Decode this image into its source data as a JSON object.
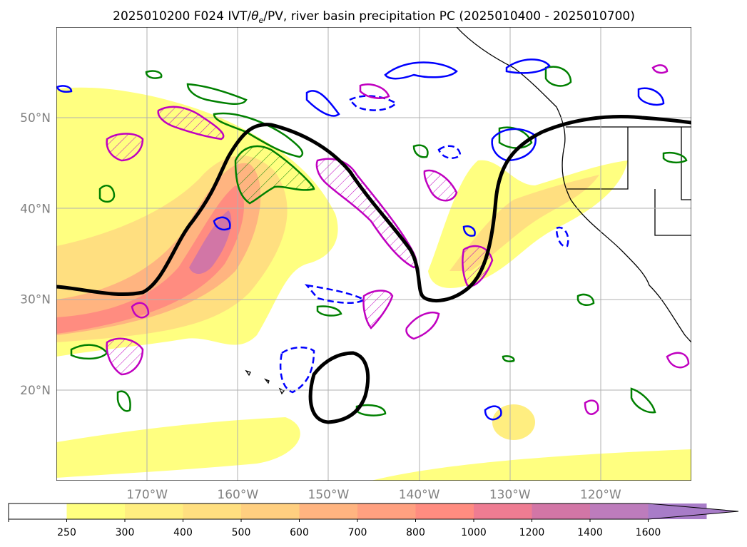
{
  "chart_data": {
    "type": "map",
    "title": "2025010200 F024 IVT/$\\theta_e$/PV, river basin precipitation PC (2025010400 - 2025010700)",
    "title_parts": {
      "prefix": "2025010200 F024 IVT/",
      "theta": "θ",
      "sub": "e",
      "suffix": "/PV, river basin precipitation PC (2025010400 - 2025010700)"
    },
    "projection": "PlateCarree",
    "lon_range": [
      -180,
      -110
    ],
    "lat_range": [
      10,
      60
    ],
    "lon_ticks": [
      {
        "value": -170,
        "label": "170°W"
      },
      {
        "value": -160,
        "label": "160°W"
      },
      {
        "value": -150,
        "label": "150°W"
      },
      {
        "value": -140,
        "label": "140°W"
      },
      {
        "value": -130,
        "label": "130°W"
      },
      {
        "value": -120,
        "label": "120°W"
      }
    ],
    "lat_ticks": [
      {
        "value": 20,
        "label": "20°N"
      },
      {
        "value": 30,
        "label": "30°N"
      },
      {
        "value": 40,
        "label": "40°N"
      },
      {
        "value": 50,
        "label": "50°N"
      }
    ],
    "grid": true,
    "ivt_field": {
      "name": "IVT",
      "levels": [
        250,
        300,
        400,
        500,
        600,
        700,
        800,
        1000,
        1200,
        1400,
        1600
      ],
      "colors": [
        "#ffffff",
        "#ffff80",
        "#ffee80",
        "#ffdf80",
        "#ffcf80",
        "#ffb480",
        "#ffa080",
        "#ff8c80",
        "#ee7c92",
        "#d276a6",
        "#bd7cbc",
        "#a87cc8"
      ],
      "extend": "max"
    },
    "colorbar": {
      "orientation": "horizontal",
      "tick_labels": [
        "250",
        "300",
        "400",
        "500",
        "600",
        "700",
        "800",
        "1000",
        "1200",
        "1400",
        "1600"
      ]
    },
    "contour_colors": {
      "theta_e": "#000000",
      "pv_positive": "#0000ff",
      "pv_negative": "#0000ff",
      "river_basin": "#008000",
      "precip_pc": "#c000c0"
    }
  }
}
